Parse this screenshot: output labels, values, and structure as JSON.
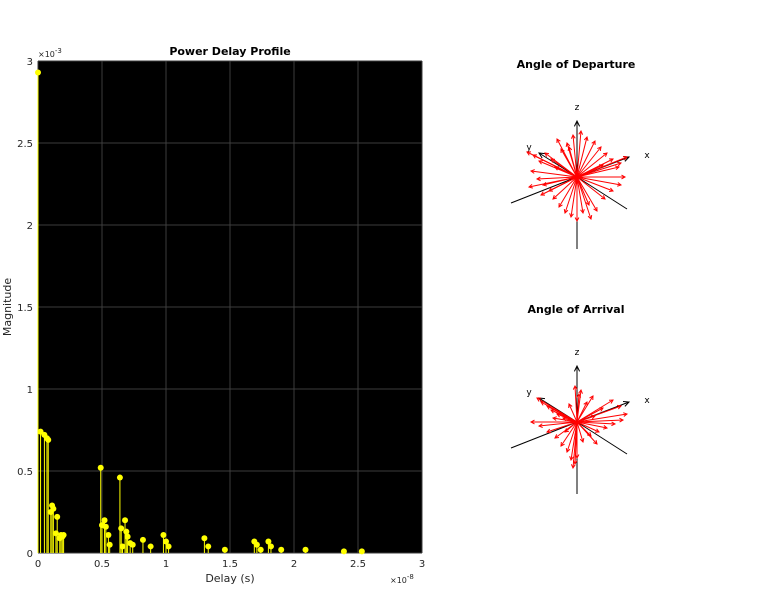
{
  "chart_data": [
    {
      "type": "stem",
      "title": "Power Delay Profile",
      "xlabel": "Delay (s)",
      "ylabel": "Magnitude",
      "x_multiplier": "×10^-8",
      "y_multiplier": "×10^-3",
      "xlim": [
        0,
        3
      ],
      "ylim": [
        0,
        3
      ],
      "xticks": [
        "0",
        "0.5",
        "1",
        "1.5",
        "2",
        "2.5",
        "3"
      ],
      "yticks": [
        "0",
        "0.5",
        "1",
        "1.5",
        "2",
        "2.5",
        "3"
      ],
      "grid": true,
      "background": "#000000",
      "series_color": "#ffff00",
      "x": [
        0.0,
        0.02,
        0.05,
        0.07,
        0.08,
        0.1,
        0.11,
        0.12,
        0.14,
        0.15,
        0.17,
        0.18,
        0.19,
        0.2,
        0.49,
        0.5,
        0.52,
        0.53,
        0.55,
        0.56,
        0.64,
        0.65,
        0.66,
        0.68,
        0.69,
        0.7,
        0.72,
        0.74,
        0.82,
        0.88,
        0.98,
        1.0,
        1.02,
        1.3,
        1.33,
        1.46,
        1.69,
        1.71,
        1.74,
        1.8,
        1.82,
        1.9,
        2.09,
        2.39,
        2.53
      ],
      "y": [
        2.93,
        0.74,
        0.72,
        0.7,
        0.69,
        0.25,
        0.29,
        0.27,
        0.12,
        0.22,
        0.09,
        0.11,
        0.1,
        0.11,
        0.52,
        0.17,
        0.2,
        0.16,
        0.11,
        0.05,
        0.46,
        0.15,
        0.04,
        0.2,
        0.13,
        0.1,
        0.06,
        0.05,
        0.08,
        0.04,
        0.11,
        0.07,
        0.04,
        0.09,
        0.04,
        0.02,
        0.07,
        0.05,
        0.02,
        0.07,
        0.04,
        0.02,
        0.02,
        0.01,
        0.01
      ]
    },
    {
      "type": "3d-quiver",
      "title": "Angle of Departure",
      "axis_labels": {
        "x": "x",
        "y": "y",
        "z": "z"
      },
      "arrow_color": "#ff0000",
      "axis_color": "#000000",
      "arrow_tips_projected": [
        [
          -50,
          -25
        ],
        [
          -44,
          -22
        ],
        [
          -38,
          -16
        ],
        [
          -32,
          -24
        ],
        [
          -26,
          -18
        ],
        [
          -22,
          -10
        ],
        [
          -46,
          -6
        ],
        [
          -40,
          2
        ],
        [
          -34,
          8
        ],
        [
          -28,
          14
        ],
        [
          -36,
          18
        ],
        [
          -24,
          22
        ],
        [
          -18,
          30
        ],
        [
          -12,
          36
        ],
        [
          -6,
          40
        ],
        [
          0,
          44
        ],
        [
          6,
          36
        ],
        [
          12,
          28
        ],
        [
          20,
          34
        ],
        [
          28,
          22
        ],
        [
          36,
          14
        ],
        [
          44,
          8
        ],
        [
          48,
          0
        ],
        [
          42,
          -10
        ],
        [
          36,
          -18
        ],
        [
          30,
          -24
        ],
        [
          24,
          -30
        ],
        [
          18,
          -36
        ],
        [
          10,
          -40
        ],
        [
          4,
          -46
        ],
        [
          -4,
          -42
        ],
        [
          -10,
          -34
        ],
        [
          -16,
          -28
        ],
        [
          -20,
          -38
        ],
        [
          50,
          -20
        ],
        [
          44,
          -14
        ],
        [
          -48,
          10
        ],
        [
          14,
          42
        ],
        [
          -8,
          -30
        ],
        [
          26,
          -12
        ]
      ]
    },
    {
      "type": "3d-quiver",
      "title": "Angle of Arrival",
      "axis_labels": {
        "x": "x",
        "y": "y",
        "z": "z"
      },
      "arrow_color": "#ff0000",
      "axis_color": "#000000",
      "arrow_tips_projected": [
        [
          -40,
          -24
        ],
        [
          -36,
          -20
        ],
        [
          -30,
          -16
        ],
        [
          -26,
          -12
        ],
        [
          -20,
          -8
        ],
        [
          -14,
          -4
        ],
        [
          -46,
          0
        ],
        [
          -38,
          4
        ],
        [
          -30,
          10
        ],
        [
          -22,
          16
        ],
        [
          -16,
          24
        ],
        [
          -10,
          30
        ],
        [
          -6,
          38
        ],
        [
          -4,
          46
        ],
        [
          -2,
          42
        ],
        [
          0,
          36
        ],
        [
          6,
          20
        ],
        [
          14,
          14
        ],
        [
          22,
          10
        ],
        [
          30,
          6
        ],
        [
          38,
          2
        ],
        [
          46,
          -2
        ],
        [
          50,
          -8
        ],
        [
          44,
          -16
        ],
        [
          36,
          -22
        ],
        [
          26,
          -14
        ],
        [
          18,
          -6
        ],
        [
          10,
          -20
        ],
        [
          2,
          -28
        ],
        [
          -2,
          -36
        ],
        [
          4,
          -32
        ],
        [
          -8,
          -18
        ],
        [
          16,
          -26
        ],
        [
          -12,
          10
        ],
        [
          20,
          22
        ],
        [
          -24,
          -4
        ]
      ]
    }
  ]
}
